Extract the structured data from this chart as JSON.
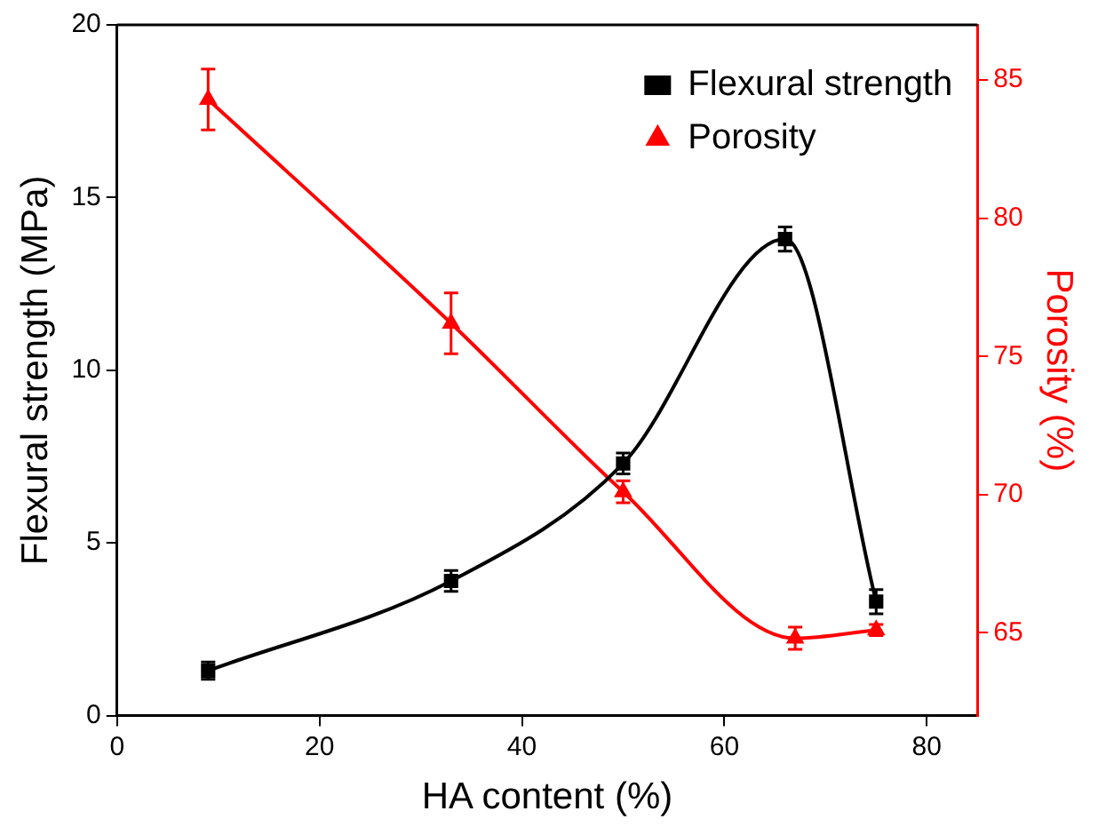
{
  "chart_data": {
    "type": "line",
    "xlabel": "HA content (%)",
    "ylabel": "Flexural strength (MPa)",
    "y2label": "Porosity (%)",
    "xlim": [
      0,
      85
    ],
    "xticks": [
      0,
      20,
      40,
      60,
      80
    ],
    "ylim": [
      0,
      20
    ],
    "yticks": [
      0,
      5,
      10,
      15,
      20
    ],
    "y2lim": [
      62,
      87
    ],
    "y2ticks": [
      65,
      70,
      75,
      80,
      85
    ],
    "grid": false,
    "legend": "top right",
    "series": [
      {
        "name": "Flexural strength",
        "color": "#000000",
        "marker": "square",
        "x": [
          9,
          33,
          50,
          66,
          75
        ],
        "values": [
          1.3,
          3.9,
          7.3,
          13.8,
          3.3
        ],
        "errors": [
          0.25,
          0.3,
          0.3,
          0.35,
          0.35
        ]
      },
      {
        "name": "Porosity",
        "color": "#ff0000",
        "marker": "triangle",
        "axis": "y2",
        "x": [
          9,
          33,
          50,
          67,
          75
        ],
        "values": [
          84.3,
          76.2,
          70.1,
          64.8,
          65.1
        ],
        "errors": [
          1.1,
          1.1,
          0.4,
          0.4,
          0.2
        ]
      }
    ]
  }
}
